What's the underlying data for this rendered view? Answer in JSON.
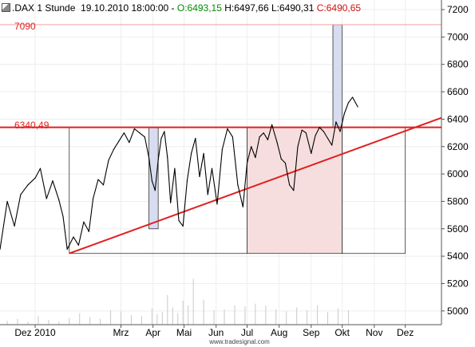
{
  "header": {
    "symbol": ".DAX",
    "interval": "1 Stunde",
    "datetime": "19.10.2010 18:00:00",
    "open": "O:6493,15",
    "high": "H:6497,66",
    "low": "L:6490,31",
    "close": "C:6490,65"
  },
  "watermark": "www.tradesignal.com",
  "level_labels": {
    "target": "7090",
    "resistance": "6340,49"
  },
  "colors": {
    "line": "#e02020",
    "box_fill": "#f6dede",
    "box_blue": "#d8dcf0",
    "up": "#0a8a0a",
    "down": "#d01010"
  },
  "chart_data": {
    "type": "line",
    "y_ticks": [
      "7200",
      "7000",
      "6800",
      "6600",
      "6400",
      "6200",
      "6000",
      "5800",
      "5600",
      "5400",
      "5200",
      "5000"
    ],
    "ylim": [
      4900,
      7270
    ],
    "x_labels": [
      "Dez 2010",
      "Mrz",
      "Apr",
      "Mai",
      "Jun",
      "Jul",
      "Aug",
      "Sep",
      "Okt",
      "Nov",
      "Dez"
    ],
    "x_label_days": [
      -23,
      60,
      91,
      121,
      152,
      182,
      213,
      244,
      274,
      305,
      335
    ],
    "x_range_days": [
      -57,
      370
    ],
    "series": [
      {
        "x": [
          -57,
          -50,
          -43,
          -37,
          -30,
          -23,
          -18,
          -12,
          -6,
          0,
          4,
          8,
          14,
          19,
          24,
          29,
          33,
          38,
          43,
          48,
          53,
          58,
          63,
          68,
          73,
          78,
          83,
          87,
          90,
          93,
          96,
          99,
          102,
          105,
          108,
          112,
          116,
          120,
          124,
          128,
          132,
          136,
          140,
          144,
          148,
          153,
          158,
          163,
          168,
          173,
          178,
          182,
          186,
          190,
          194,
          198,
          202,
          206,
          211,
          215,
          219,
          223,
          227,
          231,
          235,
          239,
          244,
          248,
          252,
          256,
          260,
          264,
          268,
          272,
          276,
          280,
          284,
          289
        ],
        "y": [
          5450,
          5800,
          5620,
          5850,
          5920,
          5970,
          6040,
          5820,
          5950,
          5810,
          5690,
          5450,
          5540,
          5480,
          5650,
          5580,
          5820,
          5960,
          5920,
          6100,
          6180,
          6240,
          6300,
          6230,
          6330,
          6300,
          6270,
          6120,
          5950,
          5880,
          6100,
          6260,
          6310,
          6120,
          5790,
          6040,
          5660,
          5620,
          5950,
          6150,
          6260,
          5980,
          6150,
          5850,
          6040,
          5780,
          6180,
          6330,
          6270,
          5920,
          5760,
          6080,
          6200,
          6120,
          6270,
          6300,
          6250,
          6360,
          6230,
          6110,
          6080,
          5920,
          5880,
          6200,
          6320,
          6300,
          6150,
          6280,
          6340,
          6310,
          6260,
          6210,
          6380,
          6310,
          6440,
          6520,
          6560,
          6490
        ]
      }
    ],
    "levels": {
      "target": 7090,
      "resistance": 6340.49
    },
    "trendline": {
      "start": [
        10,
        5420
      ],
      "end": [
        370,
        6410
      ]
    },
    "boxes": [
      {
        "x": [
          10,
          182
        ],
        "y": [
          5420,
          6340
        ]
      },
      {
        "x": [
          182,
          274
        ],
        "y": [
          5420,
          6340
        ]
      },
      {
        "x": [
          274,
          335
        ],
        "y": [
          5420,
          6340
        ]
      }
    ],
    "blue_bars": [
      {
        "x": [
          87,
          96
        ],
        "y": [
          5600,
          6340
        ]
      },
      {
        "x": [
          265,
          274
        ],
        "y": [
          6340,
          7090
        ]
      }
    ],
    "volume": {
      "x": [
        -50,
        -40,
        -30,
        -20,
        -10,
        0,
        10,
        20,
        30,
        40,
        50,
        60,
        70,
        80,
        90,
        95,
        100,
        105,
        110,
        115,
        120,
        125,
        130,
        140,
        150,
        160,
        170,
        180,
        190,
        200,
        210,
        220,
        230,
        240,
        250,
        260,
        270,
        280
      ],
      "v": [
        40,
        60,
        30,
        90,
        50,
        35,
        70,
        120,
        80,
        60,
        150,
        140,
        100,
        90,
        170,
        110,
        130,
        310,
        180,
        120,
        250,
        200,
        480,
        260,
        150,
        160,
        200,
        190,
        220,
        200,
        160,
        140,
        180,
        150,
        200,
        130,
        170,
        150
      ]
    }
  }
}
